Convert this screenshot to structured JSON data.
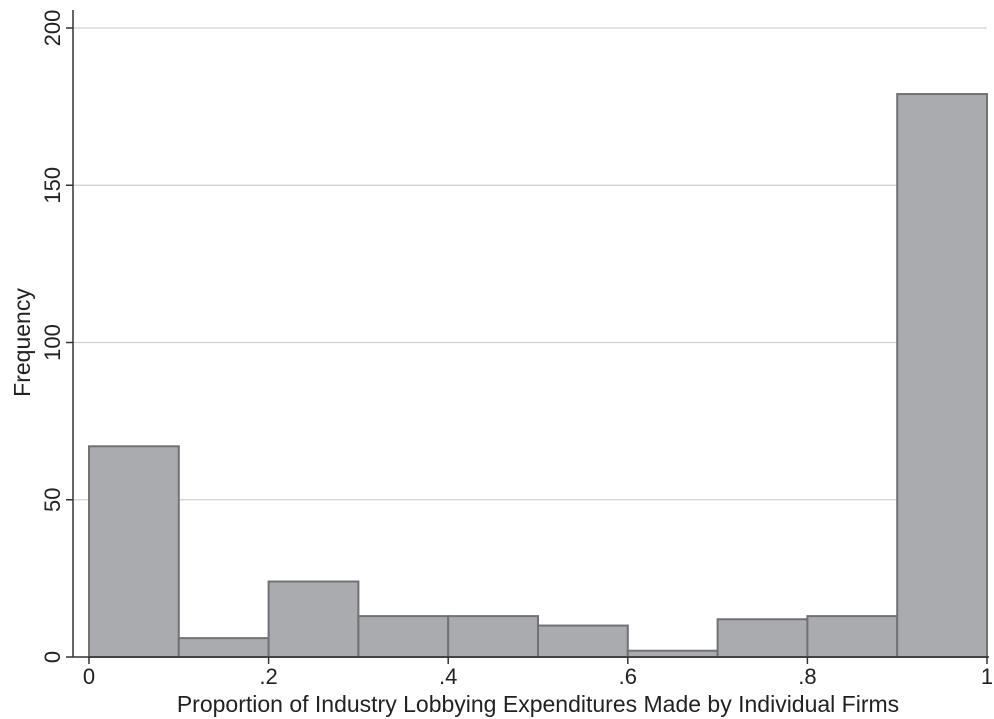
{
  "chart_data": {
    "type": "bar",
    "title": "",
    "xlabel": "Proportion of Industry Lobbying Expenditures Made by Individual Firms",
    "ylabel": "Frequency",
    "xlim": [
      0,
      1
    ],
    "ylim": [
      0,
      200
    ],
    "x_ticks": [
      {
        "value": 0,
        "label": "0"
      },
      {
        "value": 0.2,
        "label": ".2"
      },
      {
        "value": 0.4,
        "label": ".4"
      },
      {
        "value": 0.6,
        "label": ".6"
      },
      {
        "value": 0.8,
        "label": ".8"
      },
      {
        "value": 1,
        "label": "1"
      }
    ],
    "y_ticks": [
      {
        "value": 0,
        "label": "0"
      },
      {
        "value": 50,
        "label": "50"
      },
      {
        "value": 100,
        "label": "100"
      },
      {
        "value": 150,
        "label": "150"
      },
      {
        "value": 200,
        "label": "200"
      }
    ],
    "bins": [
      {
        "start": 0.0,
        "end": 0.1,
        "value": 67
      },
      {
        "start": 0.1,
        "end": 0.2,
        "value": 6
      },
      {
        "start": 0.2,
        "end": 0.3,
        "value": 24
      },
      {
        "start": 0.3,
        "end": 0.4,
        "value": 13
      },
      {
        "start": 0.4,
        "end": 0.5,
        "value": 13
      },
      {
        "start": 0.5,
        "end": 0.6,
        "value": 10
      },
      {
        "start": 0.6,
        "end": 0.7,
        "value": 2
      },
      {
        "start": 0.7,
        "end": 0.8,
        "value": 12
      },
      {
        "start": 0.8,
        "end": 0.9,
        "value": 13
      },
      {
        "start": 0.9,
        "end": 1.0,
        "value": 179
      }
    ],
    "grid": true,
    "colors": {
      "bar_fill": "#a9abaf",
      "bar_stroke": "#707276",
      "grid": "#cfcfcf",
      "axis": "#333333"
    }
  }
}
